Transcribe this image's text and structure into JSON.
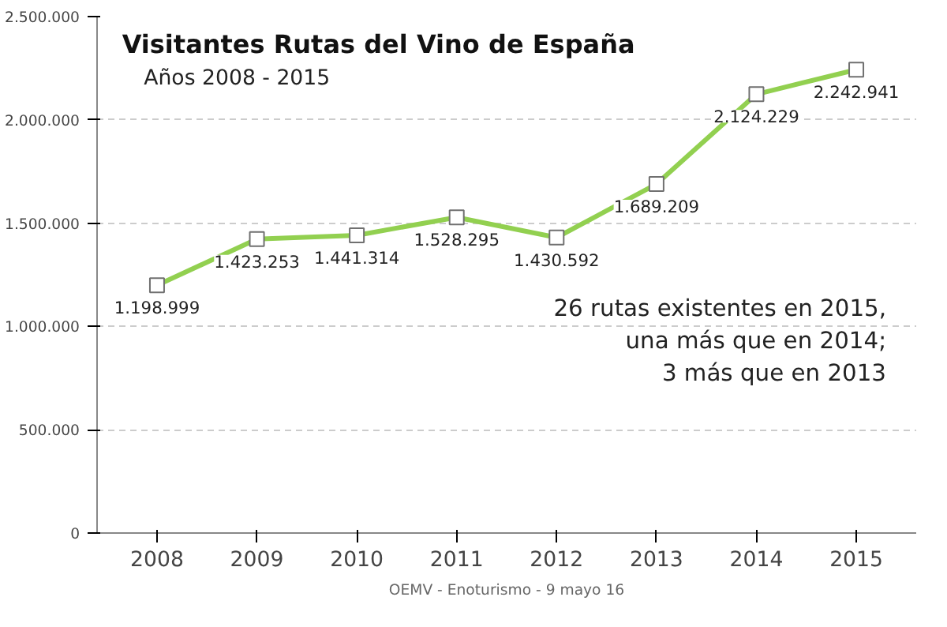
{
  "chart_data": {
    "type": "line",
    "title": "Visitantes Rutas del Vino de España",
    "subtitle": "Años 2008 - 2015",
    "categories": [
      "2008",
      "2009",
      "2010",
      "2011",
      "2012",
      "2013",
      "2014",
      "2015"
    ],
    "values": [
      1198999,
      1423253,
      1441314,
      1528295,
      1430592,
      1689209,
      2124229,
      2242941
    ],
    "value_labels": [
      "1.198.999",
      "1.423.253",
      "1.441.314",
      "1.528.295",
      "1.430.592",
      "1.689.209",
      "2.124.229",
      "2.242.941"
    ],
    "color": "#92d050",
    "marker": "square",
    "grid": "y",
    "ylim": [
      0,
      2500000
    ],
    "yticks": [
      {
        "value": 0,
        "label": "0"
      },
      {
        "value": 500000,
        "label": "500.000"
      },
      {
        "value": 1000000,
        "label": "1.000.000"
      },
      {
        "value": 1500000,
        "label": "1.500.000"
      },
      {
        "value": 2000000,
        "label": "2.000.000"
      },
      {
        "value": 2500000,
        "label": "2.500.000"
      }
    ],
    "annotations": [
      "26 rutas existentes en 2015,\nuna más que en 2014;\n3 más que en 2013",
      "OEMV - Enoturismo - 9 mayo 16"
    ]
  }
}
